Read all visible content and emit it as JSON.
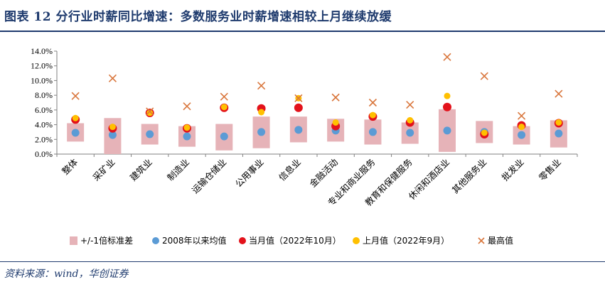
{
  "figure": {
    "title": "图表 12   分行业时薪同比增速：多数服务业时薪增速相较上月继续放缓",
    "source": "资料来源：wind，华创证券"
  },
  "chart_data": {
    "type": "scatter",
    "title": "",
    "ylim": [
      0,
      14
    ],
    "yticks": [
      0,
      2,
      4,
      6,
      8,
      10,
      12,
      14
    ],
    "ytick_labels": [
      "0.0%",
      "2.0%",
      "4.0%",
      "6.0%",
      "8.0%",
      "10.0%",
      "12.0%",
      "14.0%"
    ],
    "categories": [
      "整体",
      "采矿业",
      "建筑业",
      "制造业",
      "运输仓储业",
      "公用事业",
      "信息业",
      "金融活动",
      "专业和商业服务",
      "教育和保健服务",
      "休闲和酒店业",
      "其他服务业",
      "批发业",
      "零售业"
    ],
    "series": [
      {
        "name": "+/-1倍标准差",
        "kind": "range",
        "color": "#e6b3b8",
        "low": [
          1.7,
          0.0,
          1.3,
          1.0,
          0.5,
          0.8,
          1.6,
          1.7,
          1.3,
          1.4,
          0.3,
          1.5,
          1.3,
          0.9
        ],
        "high": [
          4.2,
          4.9,
          4.1,
          3.8,
          4.1,
          5.1,
          5.1,
          4.8,
          4.7,
          4.3,
          6.1,
          4.5,
          3.8,
          4.6
        ]
      },
      {
        "name": "2008年以来均值",
        "kind": "point",
        "color": "#5b9bd5",
        "values": [
          2.9,
          2.6,
          2.7,
          2.4,
          2.4,
          3.0,
          3.3,
          3.2,
          3.0,
          2.9,
          3.2,
          3.0,
          2.6,
          2.8
        ]
      },
      {
        "name": "当月值（2022年10月）",
        "kind": "point",
        "color": "#e3121b",
        "values": [
          4.7,
          3.5,
          5.6,
          3.5,
          6.3,
          6.2,
          6.3,
          3.8,
          5.1,
          4.3,
          6.4,
          2.7,
          3.9,
          4.2
        ]
      },
      {
        "name": "上月值（2022年9月）",
        "kind": "point",
        "color": "#ffc000",
        "values": [
          4.9,
          3.7,
          5.6,
          3.6,
          6.4,
          5.7,
          7.6,
          4.3,
          5.3,
          4.6,
          7.9,
          2.9,
          3.7,
          4.3
        ]
      },
      {
        "name": "最高值",
        "kind": "cross",
        "color": "#d9763c",
        "values": [
          7.9,
          10.3,
          5.8,
          6.5,
          7.8,
          9.3,
          7.6,
          7.7,
          7.0,
          6.7,
          13.2,
          10.6,
          5.2,
          8.2
        ]
      }
    ],
    "legend": {
      "position": "bottom",
      "labels": [
        "+/-1倍标准差",
        "2008年以来均值",
        "当月值（2022年10月）",
        "上月值（2022年9月）",
        "最高值"
      ]
    }
  }
}
